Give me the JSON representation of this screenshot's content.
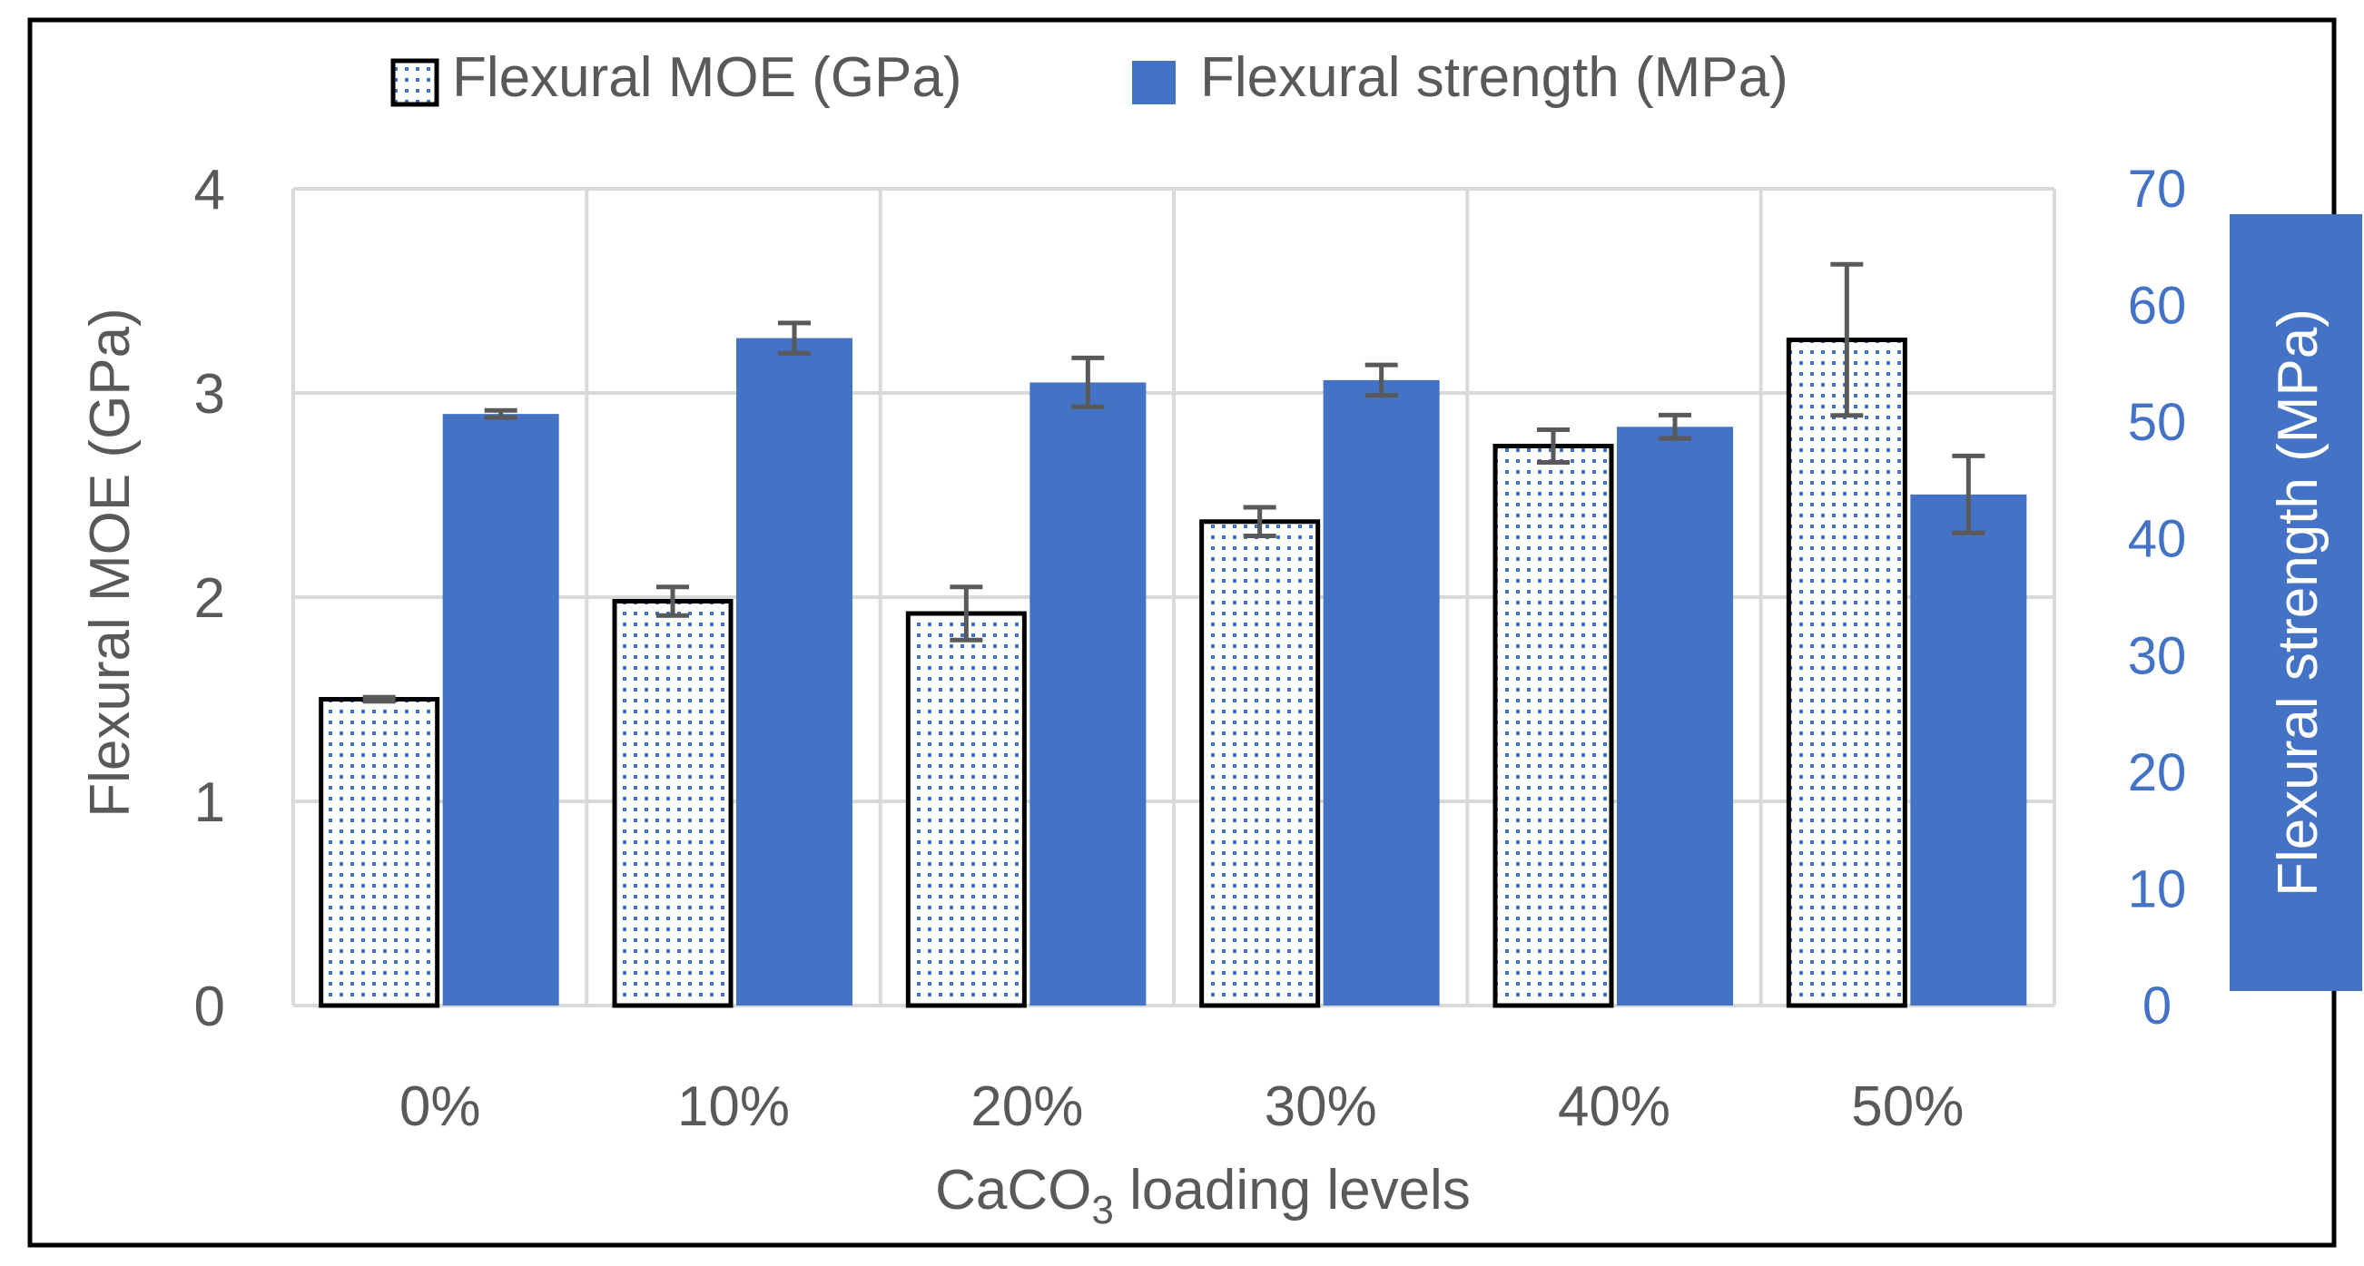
{
  "chart_data": {
    "type": "bar",
    "categories": [
      "0%",
      "10%",
      "20%",
      "30%",
      "40%",
      "50%"
    ],
    "series": [
      {
        "name": "Flexural MOE (GPa)",
        "axis": "left",
        "values": [
          1.5,
          1.98,
          1.92,
          2.37,
          2.74,
          3.26
        ],
        "error": [
          0.01,
          0.07,
          0.13,
          0.07,
          0.08,
          0.37
        ],
        "fill": "dotted"
      },
      {
        "name": "Flexural strength (MPa)",
        "axis": "right",
        "values": [
          50.7,
          57.2,
          53.4,
          53.6,
          49.6,
          43.8
        ],
        "error": [
          0.3,
          1.3,
          2.1,
          1.3,
          1.0,
          3.3
        ],
        "fill": "solid"
      }
    ],
    "xlabel_main": "CaCO",
    "xlabel_sub": "3",
    "xlabel_rest": " loading levels",
    "ylabel_left": "Flexural MOE (GPa)",
    "ylabel_right": "Flexural strength (MPa)",
    "ylim_left": [
      0,
      4
    ],
    "ylim_right": [
      0,
      70
    ],
    "left_ticks": [
      "0",
      "1",
      "2",
      "3",
      "4"
    ],
    "right_ticks": [
      "0",
      "10",
      "20",
      "30",
      "40",
      "50",
      "60",
      "70"
    ],
    "legend_position": "top",
    "grid": true
  },
  "colors": {
    "blue": "#4472C4",
    "text": "#595959",
    "grid": "#D9D9D9",
    "error": "#595959",
    "axis_text_right": "#4472C4"
  }
}
